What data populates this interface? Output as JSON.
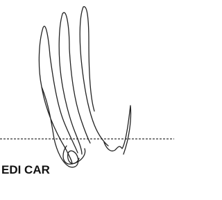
{
  "label": "EDI CAR"
}
